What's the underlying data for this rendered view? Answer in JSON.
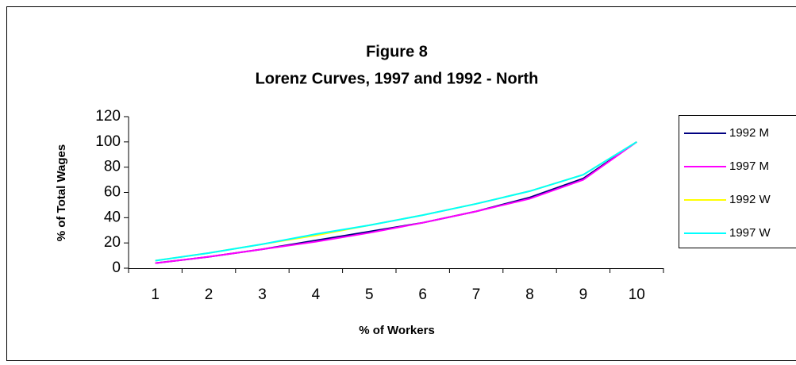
{
  "chart_data": {
    "type": "line",
    "title": "Figure 8",
    "subtitle": "Lorenz Curves, 1997 and 1992 - North",
    "x_label": "% of Workers",
    "y_label": "% of Total Wages",
    "categories": [
      "1",
      "2",
      "3",
      "4",
      "5",
      "6",
      "7",
      "8",
      "9",
      "10"
    ],
    "series": [
      {
        "name": "1992 M",
        "color": "#000080",
        "values": [
          4,
          9,
          15,
          22,
          29,
          36,
          45,
          56,
          71,
          100
        ]
      },
      {
        "name": "1997 M",
        "color": "#ff00ff",
        "values": [
          4,
          9,
          15,
          21,
          28,
          36,
          45,
          55,
          70,
          100
        ]
      },
      {
        "name": "1992 W",
        "color": "#ffff00",
        "values": [
          6,
          12,
          19,
          26,
          34,
          42,
          51,
          61,
          74,
          100
        ]
      },
      {
        "name": "1997 W",
        "color": "#00ffff",
        "values": [
          6,
          12,
          19,
          27,
          34,
          42,
          51,
          61,
          74,
          100
        ]
      }
    ],
    "ylim": [
      0,
      120
    ],
    "yticks": [
      0,
      20,
      40,
      60,
      80,
      100,
      120
    ],
    "grid": false,
    "legend": "right"
  }
}
